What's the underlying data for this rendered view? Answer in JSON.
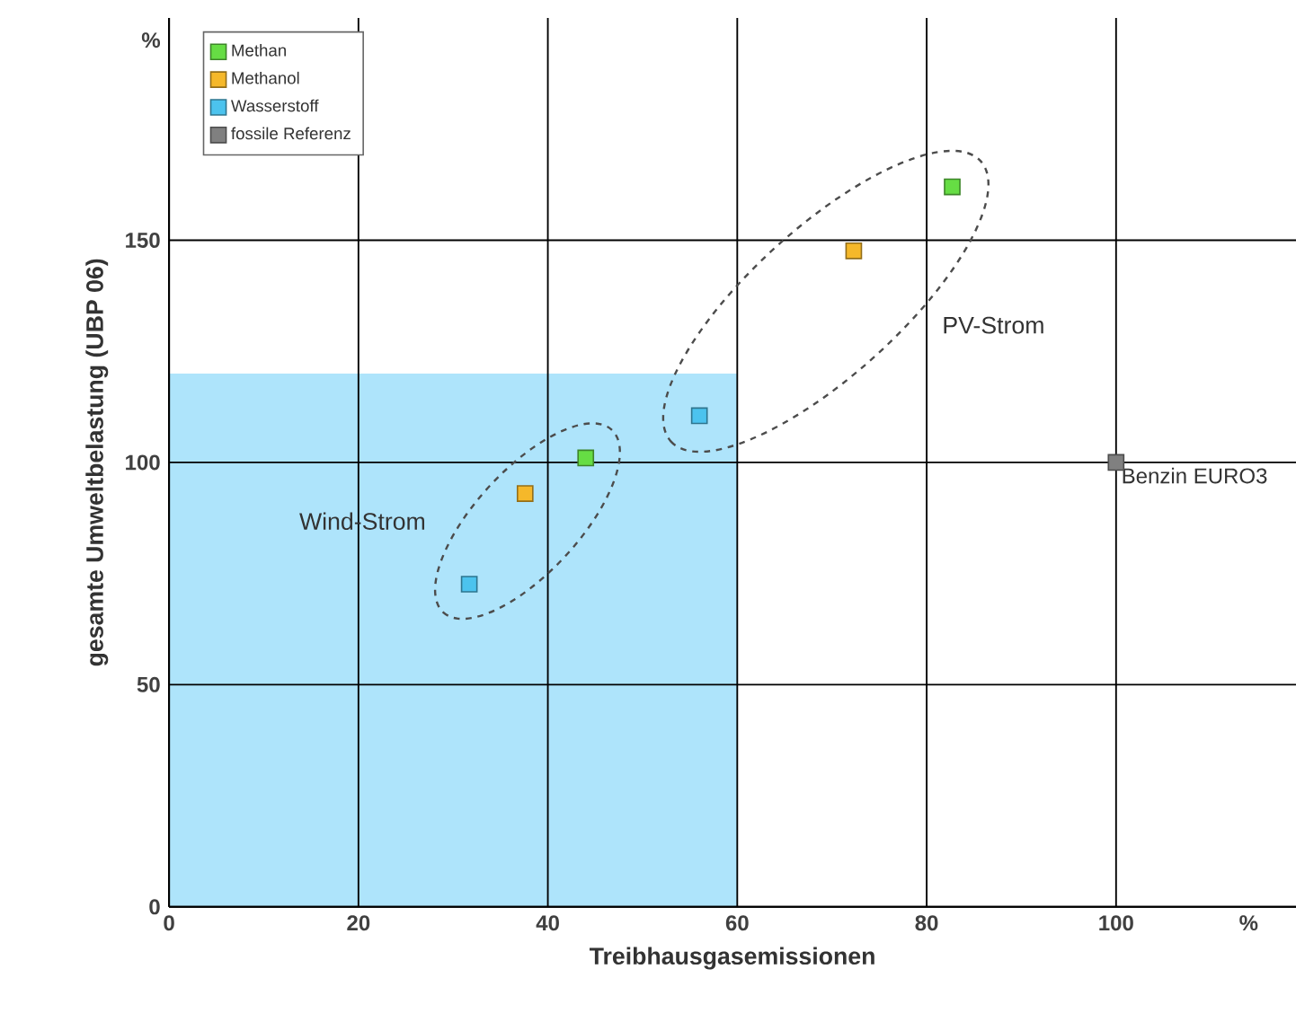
{
  "chart_data": {
    "type": "scatter",
    "xlabel": "Treibhausgasemissionen",
    "ylabel": "gesamte Umweltbelastung (UBP 06)",
    "xlim": [
      0,
      119
    ],
    "ylim": [
      0,
      200
    ],
    "xticks": [
      0,
      20,
      40,
      60,
      80,
      100,
      {
        "value": 114,
        "label": "%"
      }
    ],
    "yticks": [
      0,
      50,
      100,
      150,
      {
        "value": 195,
        "label": "%"
      }
    ],
    "grid": true,
    "legend": "top left",
    "marker": "square",
    "series": [
      {
        "type": "area",
        "marker": "none",
        "color": "#aee4fb",
        "x": [
          0,
          60
        ],
        "values": [
          120,
          120
        ]
      },
      {
        "name": "Methan",
        "color": "#66dd44",
        "x": [
          44,
          82.7
        ],
        "values": [
          101,
          162
        ]
      },
      {
        "name": "Methanol",
        "color": "#f5b82a",
        "x": [
          37.6,
          72.3
        ],
        "values": [
          93,
          147.6
        ]
      },
      {
        "name": "Wasserstoff",
        "color": "#4cc3ee",
        "x": [
          31.7,
          56
        ],
        "values": [
          72.6,
          110.5
        ]
      },
      {
        "name": "fossile Referenz",
        "color": "#808080",
        "x": [
          100
        ],
        "values": [
          100
        ]
      }
    ],
    "annotations": [
      "Wind-Strom",
      "PV-Strom",
      {
        "text": "Benzin EURO3",
        "x": 100,
        "y": 100
      }
    ]
  }
}
